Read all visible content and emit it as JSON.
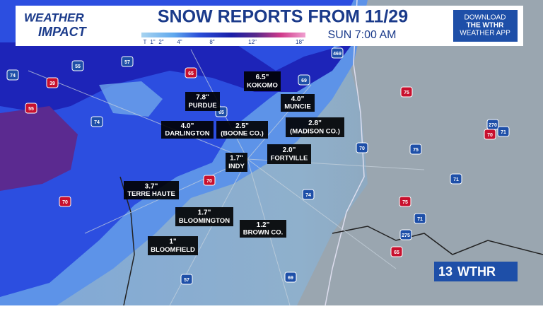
{
  "header": {
    "logo_top": "WEATHER",
    "logo_bottom": "IMPACT",
    "title": "SNOW REPORTS FROM 11/29",
    "time": "SUN 7:00 AM",
    "legend": [
      "T",
      "1\"",
      "2\"",
      "4\"",
      "8\"",
      "12\"",
      "18\""
    ],
    "app_promo": [
      "DOWNLOAD",
      "THE WTHR",
      "WEATHER APP"
    ]
  },
  "reports": [
    {
      "amount": "6.5\"",
      "place": "KOKOMO"
    },
    {
      "amount": "7.8\"",
      "place": "PURDUE"
    },
    {
      "amount": "4.0\"",
      "place": "MUNCIE"
    },
    {
      "amount": "4.0\"",
      "place": "DARLINGTON"
    },
    {
      "amount": "2.5\"",
      "place": "(BOONE CO.)"
    },
    {
      "amount": "2.8\"",
      "place": "(MADISON CO.)"
    },
    {
      "amount": "1.7\"",
      "place": "INDY"
    },
    {
      "amount": "2.0\"",
      "place": "FORTVILLE"
    },
    {
      "amount": "3.7\"",
      "place": "TERRE HAUTE"
    },
    {
      "amount": "1.7\"",
      "place": "BLOOMINGTON"
    },
    {
      "amount": "1.2\"",
      "place": "BROWN CO."
    },
    {
      "amount": "1\"",
      "place": "BLOOMFIELD"
    }
  ],
  "highways": [
    "74",
    "39",
    "55",
    "57",
    "65",
    "469",
    "69",
    "55",
    "74",
    "65",
    "70",
    "74",
    "70",
    "75",
    "270",
    "71",
    "70",
    "75",
    "71",
    "75",
    "275",
    "71",
    "65",
    "69",
    "57",
    "70"
  ],
  "brand": {
    "channel": "13",
    "name": "WTHR"
  }
}
